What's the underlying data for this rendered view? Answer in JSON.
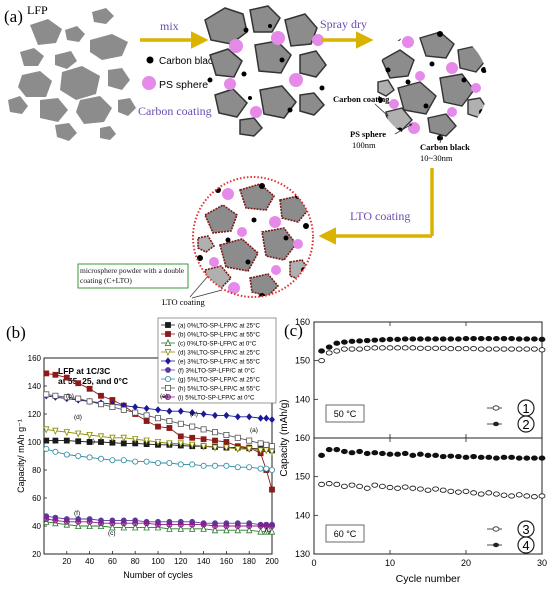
{
  "panel_a": {
    "label": "(a)",
    "lfp_label": "LFP",
    "mix_label": "mix",
    "carbon_black_label": "Carbon black",
    "ps_sphere_label": "PS sphere",
    "carbon_coating_label": "Carbon coating",
    "spray_dry_label": "Spray dry",
    "carbon_coating_note": "Carbon coating",
    "ps_sphere_note": "PS sphere",
    "ps_sphere_size": "100nm",
    "carbon_black_note": "Carbon black",
    "carbon_black_size": "10~30nm",
    "lto_coating_label": "LTO coating",
    "microsphere_box_text": "microsphere powder with a double coating (C+LTO)",
    "lto_coating_note": "LTO coating",
    "colors": {
      "arrow": "#d9b300",
      "particle": "#8c8c8c",
      "ps_sphere": "#e58ae8",
      "carbon": "#000000",
      "lto": "#e03030",
      "box_border": "#3a9a3a"
    }
  },
  "panel_b": {
    "label": "(b)",
    "title_line1": "LFP at 1C/3C",
    "title_line2": "at 55, 25, and 0°C",
    "ylabel": "Capacity/ mAh g⁻¹",
    "xlabel": "Number of cycles",
    "legend": [
      "(a) 0%LTO-SP-LFP/C at 25°C",
      "(b) 0%LTO-SP-LFP/C at 55°C",
      "(c) 0%LTO-SP-LFP/C at 0°C",
      "(d) 3%LTO-SP-LFP/C at 25°C",
      "(e) 3%LTO-SP-LFP/C at 55°C",
      "(f) 3%LTO-SP-LFP/C at 0°C",
      "(g) 5%LTO-SP-LFP/C at 25°C",
      "(h) 5%LTO-SP-LFP/C at 55°C",
      "(i) 5%LTO-SP-LFP/C at 0°C"
    ],
    "curve_labels": [
      "(b)",
      "(e)",
      "(d)",
      "(h)",
      "(a)",
      "(g)",
      "(f)",
      "(c)",
      "(i)"
    ]
  },
  "panel_c": {
    "label": "(c)",
    "ylabel": "Capacity (mAh/g)",
    "xlabel": "Cycle number",
    "top_temp": "50 °C",
    "bottom_temp": "60 °C",
    "legend_top": [
      "1",
      "2"
    ],
    "legend_bottom": [
      "3",
      "4"
    ]
  },
  "chart_data": [
    {
      "type": "line",
      "panel": "b",
      "xlim": [
        0,
        200
      ],
      "ylim": [
        20,
        160
      ],
      "xticks": [
        20,
        40,
        60,
        80,
        100,
        120,
        140,
        160,
        180,
        200
      ],
      "yticks": [
        20,
        40,
        60,
        80,
        100,
        120,
        140,
        160
      ],
      "x": [
        2,
        10,
        20,
        30,
        40,
        50,
        60,
        70,
        80,
        90,
        100,
        110,
        120,
        130,
        140,
        150,
        160,
        170,
        180,
        190,
        195,
        200
      ],
      "series": [
        {
          "name": "(a) 0%LTO-SP-LFP/C at 25°C",
          "color": "#1a1a1a",
          "marker": "square-filled",
          "values": [
            101,
            101,
            101,
            100.5,
            100,
            100,
            99.5,
            99,
            99,
            98.5,
            98,
            98,
            97.5,
            97,
            97,
            96.5,
            96,
            96,
            95.5,
            95,
            95,
            94
          ]
        },
        {
          "name": "(b) 0%LTO-SP-LFP/C at 55°C",
          "color": "#8b1a1a",
          "marker": "square-filled",
          "values": [
            149,
            148,
            146,
            142,
            138,
            133,
            130,
            126,
            120,
            115,
            111,
            110,
            104,
            103,
            102,
            101,
            100,
            97,
            96,
            92,
            80,
            66
          ]
        },
        {
          "name": "(c) 0%LTO-SP-LFP/C at 0°C",
          "color": "#2a7a2a",
          "marker": "triangle-up",
          "values": [
            43,
            42,
            41,
            40,
            40,
            40,
            39,
            39,
            39,
            39,
            39,
            38,
            38,
            38,
            38,
            37,
            37,
            37,
            37,
            36,
            36,
            36
          ]
        },
        {
          "name": "(d) 3%LTO-SP-LFP/C at 25°C",
          "color": "#8a8a00",
          "marker": "triangle-down",
          "values": [
            109,
            108,
            107,
            106,
            105,
            104,
            103,
            103,
            102,
            101,
            100,
            99,
            99,
            98,
            97,
            96,
            96,
            95,
            95,
            94,
            94,
            93
          ]
        },
        {
          "name": "(e) 3%LTO-SP-LFP/C at 55°C",
          "color": "#1a1a9a",
          "marker": "diamond",
          "values": [
            133,
            132,
            131,
            130,
            129,
            128,
            127,
            126,
            125,
            124,
            123,
            122,
            122,
            121,
            120,
            119,
            119,
            118,
            118,
            117,
            117,
            116
          ]
        },
        {
          "name": "(f) 3%LTO-SP-LFP/C at 0°C",
          "color": "#5a3aa0",
          "marker": "circle-filled",
          "values": [
            47,
            46,
            45,
            45,
            45,
            44,
            44,
            44,
            44,
            43,
            43,
            43,
            43,
            43,
            42,
            42,
            42,
            42,
            42,
            41,
            41,
            41
          ]
        },
        {
          "name": "(g) 5%LTO-SP-LFP/C at 25°C",
          "color": "#2a8aa0",
          "marker": "circle-open",
          "values": [
            95,
            93,
            91,
            90,
            89,
            88,
            87,
            87,
            86,
            86,
            85,
            85,
            84,
            84,
            83,
            83,
            83,
            82,
            82,
            81,
            81,
            80
          ]
        },
        {
          "name": "(h) 5%LTO-SP-LFP/C at 55°C",
          "color": "#555555",
          "marker": "square-open",
          "values": [
            134,
            133,
            132,
            131,
            129,
            127,
            125,
            123,
            121,
            119,
            117,
            115,
            113,
            111,
            109,
            107,
            105,
            103,
            101,
            99,
            98,
            97
          ]
        },
        {
          "name": "(i) 5%LTO-SP-LFP/C at 0°C",
          "color": "#8a1a8a",
          "marker": "circle-half",
          "values": [
            45,
            44,
            43,
            43,
            43,
            42,
            42,
            42,
            42,
            42,
            41,
            41,
            41,
            41,
            41,
            40,
            40,
            40,
            40,
            40,
            40,
            40
          ]
        }
      ]
    },
    {
      "type": "scatter",
      "panel": "c-top",
      "xlim": [
        0,
        30
      ],
      "ylim": [
        130,
        160
      ],
      "yticks": [
        130,
        140,
        150,
        160
      ],
      "x": [
        1,
        2,
        3,
        4,
        5,
        6,
        7,
        8,
        9,
        10,
        11,
        12,
        13,
        14,
        15,
        16,
        17,
        18,
        19,
        20,
        21,
        22,
        23,
        24,
        25,
        26,
        27,
        28,
        29,
        30
      ],
      "series": [
        {
          "name": "1",
          "marker": "open",
          "values": [
            150,
            152,
            152.5,
            153,
            153,
            153,
            153.2,
            153.3,
            153.3,
            153.3,
            153.3,
            153.3,
            153.3,
            153.2,
            153.2,
            153.2,
            153.2,
            153.1,
            153.1,
            153.1,
            153.1,
            153,
            153,
            153,
            153,
            153,
            153,
            153,
            153,
            152.8
          ]
        },
        {
          "name": "2",
          "marker": "filled",
          "values": [
            152.5,
            153.5,
            154.5,
            154.8,
            155,
            155.1,
            155.2,
            155.3,
            155.4,
            155.5,
            155.5,
            155.6,
            155.6,
            155.6,
            155.6,
            155.6,
            155.6,
            155.6,
            155.6,
            155.7,
            155.7,
            155.7,
            155.7,
            155.7,
            155.7,
            155.7,
            155.6,
            155.6,
            155.6,
            155.5
          ]
        }
      ]
    },
    {
      "type": "scatter",
      "panel": "c-bottom",
      "xlim": [
        0,
        30
      ],
      "ylim": [
        130,
        160
      ],
      "yticks": [
        130,
        140,
        150,
        160
      ],
      "xticks": [
        0,
        10,
        20,
        30
      ],
      "x": [
        1,
        2,
        3,
        4,
        5,
        6,
        7,
        8,
        9,
        10,
        11,
        12,
        13,
        14,
        15,
        16,
        17,
        18,
        19,
        20,
        21,
        22,
        23,
        24,
        25,
        26,
        27,
        28,
        29,
        30
      ],
      "series": [
        {
          "name": "3",
          "marker": "open",
          "values": [
            148,
            148.2,
            148,
            147.5,
            147.8,
            147.5,
            147,
            147.8,
            147.5,
            147.2,
            147,
            147.3,
            147,
            146.8,
            146.5,
            146.8,
            146.5,
            146.2,
            146,
            146.2,
            145.8,
            145.5,
            145.8,
            145.5,
            145.2,
            145,
            145.3,
            145,
            144.8,
            145
          ]
        },
        {
          "name": "4",
          "marker": "filled",
          "values": [
            155.5,
            157,
            157,
            156.5,
            156.2,
            156.5,
            156,
            156.2,
            156,
            155.8,
            155.8,
            156,
            155.5,
            155.8,
            155.5,
            155.5,
            155.2,
            155.3,
            155.2,
            155,
            155.2,
            155,
            155,
            154.8,
            155,
            155,
            154.8,
            154.8,
            154.8,
            154.8
          ]
        }
      ]
    }
  ]
}
